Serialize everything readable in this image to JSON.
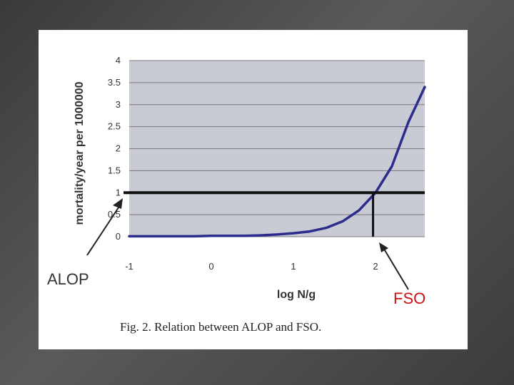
{
  "chart_data": {
    "type": "line",
    "title": "",
    "xlabel": "log N/g",
    "ylabel": "mortality/year per 1000000",
    "xlim": [
      -1,
      2.6
    ],
    "ylim": [
      0,
      4
    ],
    "x_ticks": [
      "-1",
      "0",
      "1",
      "2"
    ],
    "y_ticks": [
      "0",
      "0.5",
      "1",
      "1.5",
      "2",
      "2.5",
      "3",
      "3.5",
      "4"
    ],
    "grid": true,
    "legend": "none",
    "series": [
      {
        "x": [
          -1,
          -0.8,
          -0.6,
          -0.4,
          -0.2,
          0,
          0.2,
          0.4,
          0.6,
          0.8,
          1.0,
          1.2,
          1.4,
          1.6,
          1.8,
          2.0,
          2.2,
          2.4,
          2.6
        ],
        "y": [
          0.01,
          0.01,
          0.01,
          0.01,
          0.01,
          0.02,
          0.02,
          0.02,
          0.03,
          0.05,
          0.08,
          0.12,
          0.2,
          0.35,
          0.6,
          1.0,
          1.6,
          2.6,
          3.4
        ]
      }
    ],
    "alop_level": 1,
    "fso_value": 1.97
  },
  "annotations": {
    "alop": "ALOP",
    "fso": "FSO"
  },
  "caption": "Fig. 2.  Relation between ALOP and FSO.",
  "colors": {
    "plot_bg": "#c8cad4",
    "curve": "#2c2c8c",
    "threshold": "#111111",
    "fso_text": "#cc1111"
  }
}
